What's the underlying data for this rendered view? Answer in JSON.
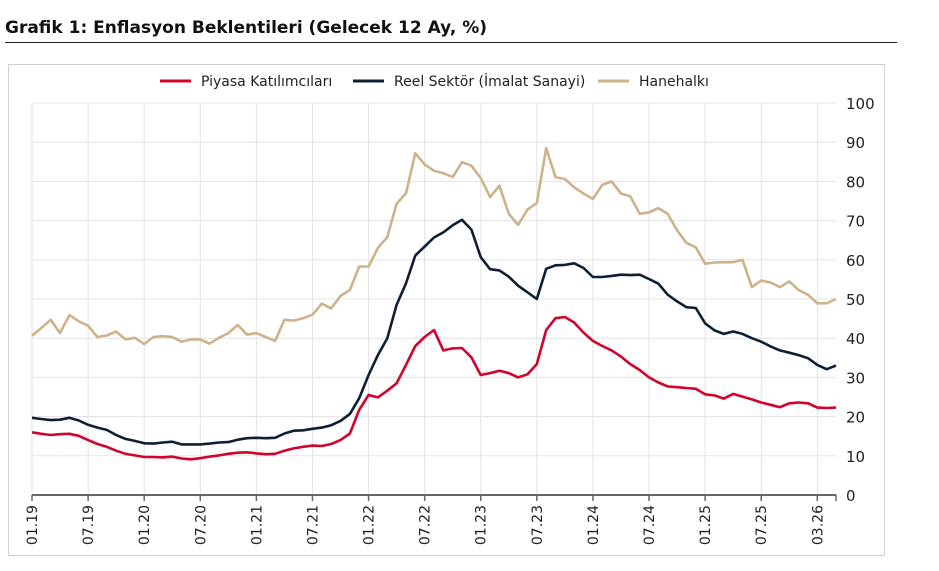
{
  "title": "Grafik 1: Enflasyon Beklentileri (Gelecek 12 Ay, %)",
  "chart_data": {
    "type": "line",
    "title": "Grafik 1: Enflasyon Beklentileri (Gelecek 12 Ay, %)",
    "xlabel": "",
    "ylabel": "",
    "ylim": [
      0,
      100
    ],
    "yticks": [
      "0",
      "10",
      "20",
      "30",
      "40",
      "50",
      "60",
      "70",
      "80",
      "90",
      "100"
    ],
    "y_axis_side": "right",
    "x_start": "01.19",
    "x_end": "03.26",
    "frequency": "monthly",
    "xtick_labels": [
      "01.19",
      "07.19",
      "01.20",
      "07.20",
      "01.21",
      "07.21",
      "01.22",
      "07.22",
      "01.23",
      "07.23",
      "01.24",
      "07.24",
      "01.25",
      "07.25",
      "03.26"
    ],
    "grid": true,
    "legend_position": "top",
    "series": [
      {
        "name": "Piyasa Katılımcıları",
        "color": "#d2042d",
        "values": [
          16.0,
          15.6,
          15.3,
          15.5,
          15.6,
          15.1,
          14.0,
          13.0,
          12.3,
          11.3,
          10.5,
          10.1,
          9.7,
          9.7,
          9.6,
          9.8,
          9.3,
          9.1,
          9.4,
          9.8,
          10.1,
          10.5,
          10.8,
          10.9,
          10.6,
          10.4,
          10.5,
          11.3,
          11.9,
          12.3,
          12.6,
          12.5,
          13.0,
          14.0,
          15.7,
          21.7,
          25.5,
          24.9,
          26.6,
          28.5,
          33.2,
          38.0,
          40.3,
          42.1,
          36.9,
          37.4,
          37.5,
          35.1,
          30.6,
          31.1,
          31.7,
          31.1,
          30.0,
          30.8,
          33.4,
          42.1,
          45.1,
          45.4,
          44.0,
          41.4,
          39.3,
          38.0,
          36.9,
          35.3,
          33.4,
          31.9,
          30.0,
          28.7,
          27.7,
          27.5,
          27.3,
          27.1,
          25.7,
          25.4,
          24.6,
          25.8,
          25.1,
          24.4,
          23.6,
          23.0,
          22.4,
          23.4,
          23.6,
          23.4,
          22.3,
          22.2,
          22.3
        ]
      },
      {
        "name": "Reel Sektör (İmalat Sanayi)",
        "color": "#0f1f33",
        "values": [
          19.7,
          19.4,
          19.1,
          19.2,
          19.7,
          19.0,
          17.9,
          17.2,
          16.6,
          15.3,
          14.3,
          13.8,
          13.2,
          13.1,
          13.4,
          13.6,
          12.9,
          12.9,
          12.9,
          13.1,
          13.4,
          13.5,
          14.1,
          14.5,
          14.6,
          14.5,
          14.6,
          15.7,
          16.4,
          16.5,
          16.9,
          17.2,
          17.8,
          18.9,
          20.7,
          24.7,
          30.6,
          35.7,
          40.0,
          48.5,
          54.0,
          61.1,
          63.4,
          65.7,
          67.0,
          68.8,
          70.2,
          67.7,
          60.7,
          57.6,
          57.3,
          55.7,
          53.4,
          51.7,
          50.0,
          57.7,
          58.6,
          58.7,
          59.1,
          57.9,
          55.6,
          55.6,
          55.9,
          56.2,
          56.1,
          56.2,
          55.1,
          53.9,
          51.1,
          49.4,
          47.9,
          47.7,
          43.8,
          42.0,
          41.1,
          41.7,
          41.1,
          40.0,
          39.1,
          37.9,
          36.9,
          36.3,
          35.7,
          34.9,
          33.2,
          32.1,
          33.0
        ]
      },
      {
        "name": "Hanehalkı",
        "color": "#cdb38b",
        "values": [
          40.6,
          42.6,
          44.7,
          41.3,
          45.9,
          44.3,
          43.2,
          40.3,
          40.7,
          41.7,
          39.7,
          40.1,
          38.5,
          40.3,
          40.5,
          40.3,
          39.1,
          39.7,
          39.7,
          38.6,
          40.1,
          41.3,
          43.4,
          40.9,
          41.3,
          40.3,
          39.3,
          44.7,
          44.5,
          45.1,
          46.0,
          48.8,
          47.6,
          50.8,
          52.3,
          58.3,
          58.3,
          63.0,
          65.8,
          74.3,
          77.0,
          87.2,
          84.3,
          82.7,
          82.1,
          81.1,
          84.9,
          84.0,
          80.9,
          76.0,
          78.9,
          71.7,
          68.9,
          72.8,
          74.5,
          88.5,
          81.1,
          80.6,
          78.5,
          76.9,
          75.5,
          79.1,
          80.0,
          76.9,
          76.2,
          71.7,
          72.1,
          73.2,
          71.7,
          67.5,
          64.3,
          63.2,
          59.0,
          59.3,
          59.4,
          59.4,
          60.0,
          53.0,
          54.7,
          54.2,
          53.0,
          54.5,
          52.3,
          51.1,
          48.9,
          48.9,
          50.0
        ]
      }
    ]
  }
}
